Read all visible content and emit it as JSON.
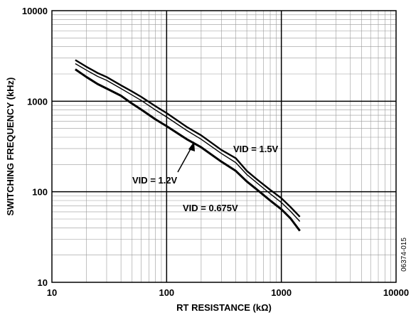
{
  "chart_data": {
    "type": "line",
    "x_scale": "log",
    "y_scale": "log",
    "xlabel": "RT RESISTANCE (kΩ)",
    "ylabel": "SWITCHING FREQUENCY (kHz)",
    "xlim": [
      10,
      10000
    ],
    "ylim": [
      10,
      10000
    ],
    "x_ticks": [
      "10",
      "100",
      "1000",
      "10000"
    ],
    "y_ticks": [
      "10",
      "100",
      "1000",
      "10000"
    ],
    "grid": true,
    "figure_id": "06374-015",
    "series": [
      {
        "name": "VID = 1.5V",
        "x": [
          16,
          20,
          25,
          30,
          40,
          50,
          60,
          80,
          100,
          150,
          200,
          300,
          400,
          500,
          600,
          800,
          1000,
          1200,
          1450
        ],
        "y": [
          2850,
          2400,
          2050,
          1850,
          1500,
          1280,
          1120,
          880,
          740,
          520,
          420,
          290,
          235,
          170,
          140,
          105,
          85,
          68,
          53
        ]
      },
      {
        "name": "",
        "x": [
          16,
          20,
          25,
          30,
          40,
          50,
          60,
          80,
          100,
          150,
          200,
          300,
          400,
          500,
          600,
          800,
          1000,
          1200,
          1450
        ],
        "y": [
          2600,
          2200,
          1880,
          1700,
          1380,
          1170,
          1020,
          800,
          670,
          475,
          380,
          265,
          210,
          155,
          128,
          95,
          76,
          61,
          47
        ]
      },
      {
        "name": "VID = 0.675V",
        "x": [
          16,
          20,
          25,
          30,
          40,
          50,
          60,
          80,
          100,
          150,
          200,
          300,
          400,
          500,
          600,
          800,
          1000,
          1200,
          1450
        ],
        "y": [
          2250,
          1850,
          1550,
          1380,
          1150,
          940,
          810,
          630,
          530,
          380,
          310,
          215,
          170,
          130,
          108,
          80,
          64,
          51,
          37
        ]
      }
    ],
    "annotations": [
      {
        "text": "VID = 1.5V"
      },
      {
        "text": "VID = 1.2V"
      },
      {
        "text": "VID = 0.675V"
      }
    ]
  }
}
